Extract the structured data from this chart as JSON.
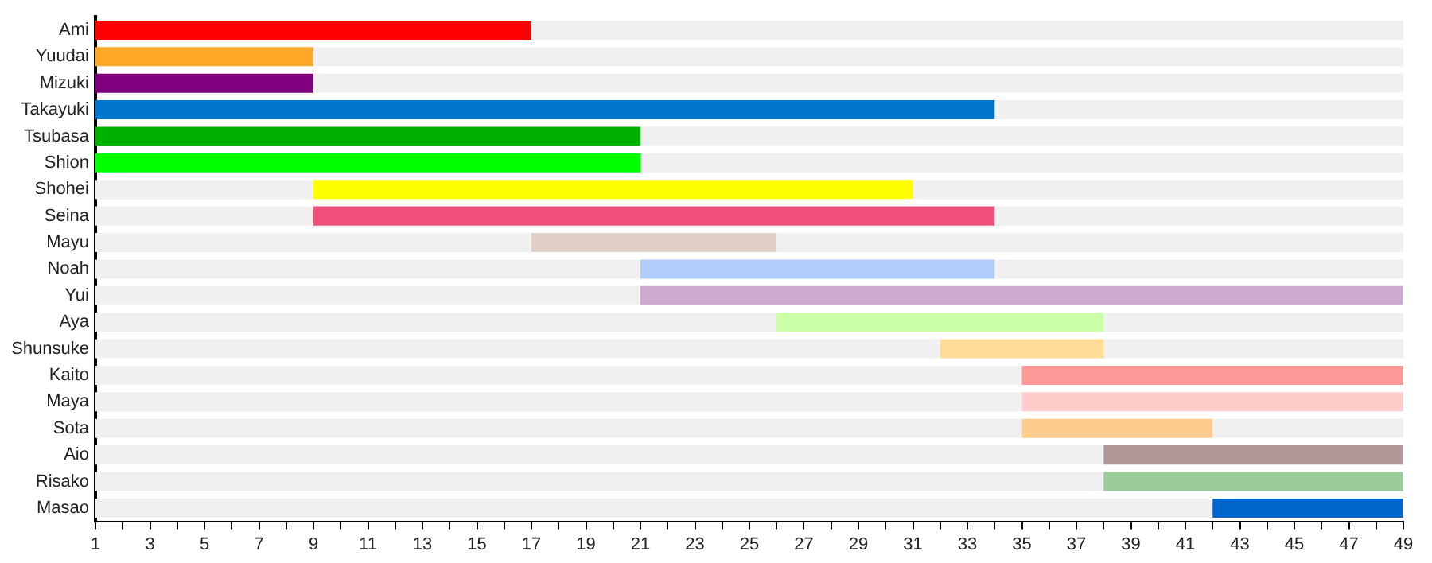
{
  "chart_data": {
    "type": "bar",
    "orientation": "horizontal",
    "categories": [
      "Ami",
      "Yuudai",
      "Mizuki",
      "Takayuki",
      "Tsubasa",
      "Shion",
      "Shohei",
      "Seina",
      "Mayu",
      "Noah",
      "Yui",
      "Aya",
      "Shunsuke",
      "Kaito",
      "Maya",
      "Sota",
      "Aio",
      "Risako",
      "Masao"
    ],
    "series": [
      {
        "color": "#f0f0f0",
        "base": [
          null,
          null,
          null,
          null,
          null,
          null,
          1,
          1,
          1,
          1,
          1,
          1,
          1,
          1,
          1,
          1,
          1,
          1,
          1
        ],
        "values": [
          null,
          null,
          null,
          null,
          null,
          null,
          8,
          8,
          16,
          20,
          20,
          25,
          31,
          34,
          34,
          34,
          37,
          37,
          41
        ]
      },
      {
        "color": "#f0f0f0",
        "base": [
          17,
          9,
          9,
          34,
          21,
          21,
          31,
          34,
          26,
          34,
          null,
          38,
          38,
          null,
          null,
          42,
          null,
          null,
          null
        ],
        "values": [
          32,
          40,
          40,
          15,
          28,
          28,
          18,
          15,
          23,
          15,
          null,
          11,
          11,
          null,
          null,
          7,
          null,
          null,
          null
        ]
      },
      {
        "colors": [
          "#ff0000",
          "#ffa726",
          "#800080",
          "#0077cc",
          "#00b000",
          "#00ff00",
          "#ffff00",
          "#f0507a",
          "#e0d0c8",
          "#b0ccf8",
          "#ccaad0",
          "#ccffaa",
          "#ffdd99",
          "#ff9999",
          "#ffcccc",
          "#ffcc90",
          "#b09898",
          "#99cc99",
          "#0066cc"
        ],
        "base": [
          1,
          1,
          1,
          1,
          1,
          1,
          9,
          9,
          17,
          21,
          21,
          26,
          32,
          35,
          35,
          35,
          38,
          38,
          42
        ],
        "values": [
          16,
          8,
          8,
          33,
          20,
          20,
          22,
          25,
          9,
          13,
          28,
          12,
          6,
          14,
          14,
          7,
          11,
          11,
          7
        ]
      }
    ],
    "xlim": [
      1,
      49
    ],
    "xticks": [
      1,
      {
        "value": 2,
        "label": null
      },
      3,
      {
        "value": 4,
        "label": null
      },
      5,
      {
        "value": 6,
        "label": null
      },
      7,
      {
        "value": 8,
        "label": null
      },
      9,
      {
        "value": 10,
        "label": null
      },
      11,
      {
        "value": 12,
        "label": null
      },
      13,
      {
        "value": 14,
        "label": null
      },
      15,
      {
        "value": 16,
        "label": null
      },
      17,
      {
        "value": 18,
        "label": null
      },
      19,
      {
        "value": 20,
        "label": null
      },
      21,
      {
        "value": 22,
        "label": null
      },
      23,
      {
        "value": 24,
        "label": null
      },
      25,
      {
        "value": 26,
        "label": null
      },
      27,
      {
        "value": 28,
        "label": null
      },
      29,
      {
        "value": 30,
        "label": null
      },
      31,
      {
        "value": 32,
        "label": null
      },
      33,
      {
        "value": 34,
        "label": null
      },
      35,
      {
        "value": 36,
        "label": null
      },
      37,
      {
        "value": 38,
        "label": null
      },
      39,
      {
        "value": 40,
        "label": null
      },
      41,
      {
        "value": 42,
        "label": null
      },
      43,
      {
        "value": 44,
        "label": null
      },
      45,
      {
        "value": 46,
        "label": null
      },
      47,
      {
        "value": 48,
        "label": null
      },
      49
    ],
    "grid": false,
    "legend": false
  }
}
